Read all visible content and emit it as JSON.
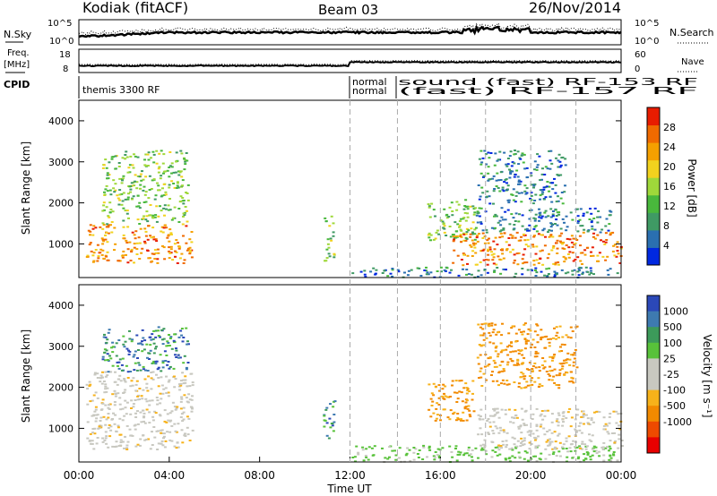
{
  "header": {
    "station": "Kodiak (fitACF)",
    "beam": "Beam 03",
    "date": "26/Nov/2014"
  },
  "top_panels": {
    "nsky_label": "N.Sky",
    "nsky_ticks": [
      "10^5",
      "10^0"
    ],
    "nsearch_label": "N.Search",
    "nsearch_ticks": [
      "10^5",
      "10^0"
    ],
    "freq_label_1": "Freq.",
    "freq_label_2": "[MHz]",
    "freq_ticks": [
      "18",
      "8"
    ],
    "nave_label": "Nave",
    "nave_ticks": [
      "60",
      "0"
    ],
    "cpid_label": "CPID",
    "cpid_modes": [
      {
        "text": "themis 3300 RF",
        "t": 0.0
      },
      {
        "text": "normal",
        "t": 12.0
      },
      {
        "text": "normal",
        "t": 12.0,
        "row": 2
      },
      {
        "text": "sound (fast) RF-153 RF",
        "t": 14.1
      },
      {
        "text": "(fast) RF-157 RF",
        "t": 14.1,
        "row": 2
      }
    ]
  },
  "chart_data": [
    {
      "type": "heatmap",
      "name": "power",
      "ylabel": "Slant Range [km]",
      "xlim": [
        0,
        24
      ],
      "ylim": [
        180,
        4500
      ],
      "yticks": [
        1000,
        2000,
        3000,
        4000
      ],
      "colorbar": {
        "label": "Power [dB]",
        "ticks": [
          "4",
          "8",
          "12",
          "16",
          "20",
          "24",
          "28"
        ],
        "colors": [
          "#0028e0",
          "#2a6fb0",
          "#3f9a64",
          "#49b83c",
          "#9fd83a",
          "#f2d21e",
          "#f5a000",
          "#f06a00",
          "#e81c00"
        ],
        "range": [
          0,
          30
        ]
      },
      "regions": [
        {
          "t": [
            0.3,
            5.0
          ],
          "r": [
            550,
            1500
          ],
          "level": "high"
        },
        {
          "t": [
            1.0,
            4.8
          ],
          "r": [
            1500,
            3300
          ],
          "level": "mid"
        },
        {
          "t": [
            10.8,
            11.3
          ],
          "r": [
            600,
            1700
          ],
          "level": "mid"
        },
        {
          "t": [
            12.0,
            23.8
          ],
          "r": [
            200,
            450
          ],
          "level": "low"
        },
        {
          "t": [
            15.4,
            17.6
          ],
          "r": [
            1100,
            2100
          ],
          "level": "mid"
        },
        {
          "t": [
            16.5,
            24.0
          ],
          "r": [
            500,
            1300
          ],
          "level": "high"
        },
        {
          "t": [
            17.5,
            23.5
          ],
          "r": [
            1300,
            1900
          ],
          "level": "low"
        },
        {
          "t": [
            17.6,
            21.5
          ],
          "r": [
            2000,
            3300
          ],
          "level": "low"
        }
      ]
    },
    {
      "type": "heatmap",
      "name": "velocity",
      "ylabel": "Slant Range [km]",
      "xlabel": "Time UT",
      "xlim": [
        0,
        24
      ],
      "ylim": [
        180,
        4500
      ],
      "yticks": [
        1000,
        2000,
        3000,
        4000
      ],
      "xticks": [
        "00:00",
        "04:00",
        "08:00",
        "12:00",
        "16:00",
        "20:00",
        "00:00"
      ],
      "colorbar": {
        "label": "Velocity [m s⁻¹]",
        "ticks": [
          "1000",
          "500",
          "100",
          "25",
          "-25",
          "-100",
          "-500",
          "-1000"
        ],
        "colors": [
          "#2b48b8",
          "#3e7ab0",
          "#3c9a5a",
          "#58c23a",
          "#c8c8c0",
          "#c8c8c0",
          "#f7b21a",
          "#f28a00",
          "#ee4a00",
          "#e80000"
        ]
      },
      "regions": [
        {
          "t": [
            0.3,
            5.0
          ],
          "r": [
            500,
            2400
          ],
          "v": "gray"
        },
        {
          "t": [
            1.0,
            4.8
          ],
          "r": [
            2400,
            3500
          ],
          "v": "mix"
        },
        {
          "t": [
            10.8,
            11.3
          ],
          "r": [
            600,
            1700
          ],
          "v": "mix"
        },
        {
          "t": [
            12.0,
            23.8
          ],
          "r": [
            200,
            600
          ],
          "v": "green"
        },
        {
          "t": [
            15.4,
            17.5
          ],
          "r": [
            1200,
            2200
          ],
          "v": "orange"
        },
        {
          "t": [
            17.6,
            24.0
          ],
          "r": [
            500,
            1500
          ],
          "v": "gray"
        },
        {
          "t": [
            17.6,
            22.0
          ],
          "r": [
            2000,
            3600
          ],
          "v": "orange"
        }
      ]
    }
  ]
}
